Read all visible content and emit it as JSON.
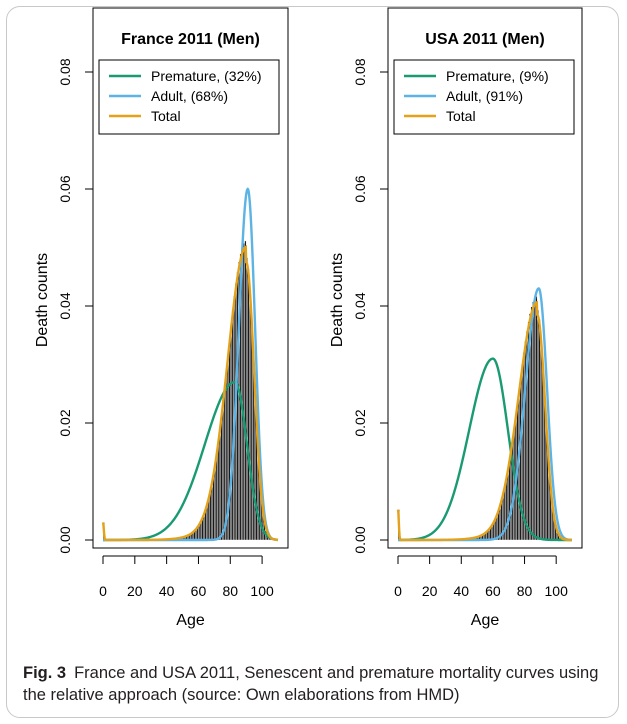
{
  "caption": {
    "label": "Fig. 3",
    "text": "France and USA 2011, Senescent and premature mortality curves using the relative approach (source: Own elaborations from HMD)"
  },
  "colors": {
    "premature": "#1a9a73",
    "adult": "#5db3e4",
    "total": "#e3a21a",
    "bars": "#1a1a1a"
  },
  "chart_data": [
    {
      "type": "line",
      "title": "France 2011 (Men)",
      "xlabel": "Age",
      "ylabel": "Death counts",
      "xlim": [
        0,
        110
      ],
      "ylim": [
        0,
        0.08
      ],
      "xticks": [
        0,
        20,
        40,
        60,
        80,
        100
      ],
      "yticks": [
        "0.00",
        "0.02",
        "0.04",
        "0.06",
        "0.08"
      ],
      "legend_position": "top-left",
      "histogram": {
        "type": "bar",
        "mode": 90,
        "peak": 0.0485,
        "age0": 0.003
      },
      "series": [
        {
          "name": "Premature, (32%)",
          "key": "premature",
          "mode": 83,
          "peak": 0.027,
          "sdLeft": 19,
          "sdRight": 7.5
        },
        {
          "name": "Adult, (68%)",
          "key": "adult",
          "mode": 91,
          "peak": 0.06,
          "sdLeft": 5.6,
          "sdRight": 4.6
        },
        {
          "name": "Total",
          "key": "total",
          "mode": 90,
          "peak": 0.0475,
          "age0": 0.003
        }
      ]
    },
    {
      "type": "line",
      "title": "USA 2011 (Men)",
      "xlabel": "Age",
      "ylabel": "Death counts",
      "xlim": [
        0,
        110
      ],
      "ylim": [
        0,
        0.08
      ],
      "xticks": [
        0,
        20,
        40,
        60,
        80,
        100
      ],
      "yticks": [
        "0.00",
        "0.02",
        "0.04",
        "0.06",
        "0.08"
      ],
      "legend_position": "top-left",
      "histogram": {
        "type": "bar",
        "mode": 88,
        "peak": 0.0395,
        "age0": 0.0052
      },
      "series": [
        {
          "name": "Premature, (9%)",
          "key": "premature",
          "mode": 60,
          "peak": 0.031,
          "sdLeft": 15,
          "sdRight": 9.5
        },
        {
          "name": "Adult, (91%)",
          "key": "adult",
          "mode": 89,
          "peak": 0.043,
          "sdLeft": 8.5,
          "sdRight": 5.2
        },
        {
          "name": "Total",
          "key": "total",
          "mode": 88,
          "peak": 0.0385,
          "age0": 0.0052
        }
      ]
    }
  ]
}
